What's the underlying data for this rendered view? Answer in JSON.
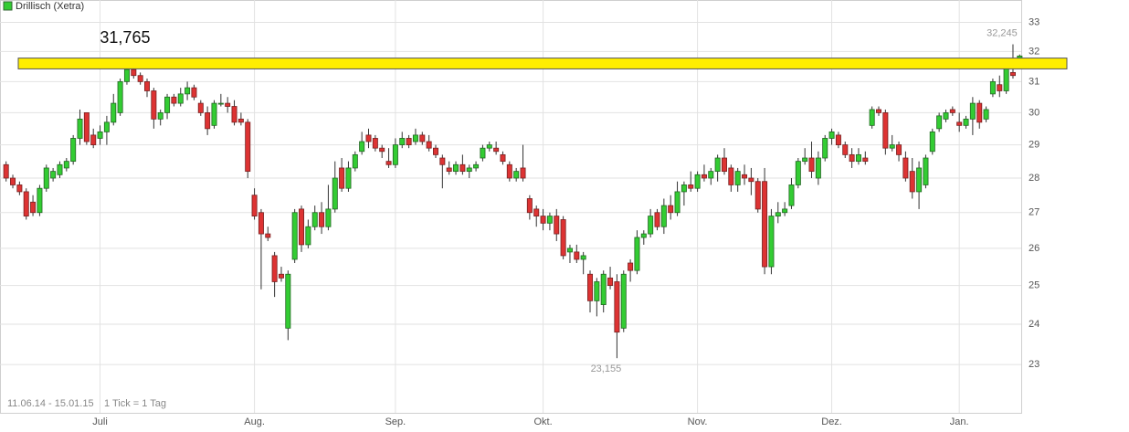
{
  "chart_data": {
    "type": "candlestick",
    "title": "Drillisch (Xetra)",
    "period": "11.06.14 - 15.01.15",
    "tick_note": "1 Tick = 1 Tag",
    "legend_color": "#33cc33",
    "up_color": "#33cc33",
    "down_color": "#dd3333",
    "log_scale": true,
    "grid": true,
    "ylim": [
      21.9,
      33.4
    ],
    "yticks": [
      23,
      24,
      25,
      26,
      27,
      28,
      29,
      30,
      31,
      32,
      33
    ],
    "highlight_band": {
      "from": 31.42,
      "to": 31.78,
      "color": "#ffee00"
    },
    "annotations": [
      {
        "label": "31,765",
        "value": 31.765
      },
      {
        "label": "32,245",
        "value": 32.245
      },
      {
        "label": "23,155",
        "value": 23.155
      }
    ],
    "categories": [
      null,
      null,
      null,
      null,
      null,
      null,
      null,
      null,
      null,
      null,
      null,
      null,
      null,
      null,
      "Juli",
      null,
      null,
      null,
      null,
      null,
      null,
      null,
      null,
      null,
      null,
      null,
      null,
      null,
      null,
      null,
      null,
      null,
      null,
      null,
      null,
      null,
      null,
      "Aug.",
      null,
      null,
      null,
      null,
      null,
      null,
      null,
      null,
      null,
      null,
      null,
      null,
      null,
      null,
      null,
      null,
      null,
      null,
      null,
      null,
      "Sep.",
      null,
      null,
      null,
      null,
      null,
      null,
      null,
      null,
      null,
      null,
      null,
      null,
      null,
      null,
      null,
      null,
      null,
      null,
      null,
      null,
      null,
      "Okt.",
      null,
      null,
      null,
      null,
      null,
      null,
      null,
      null,
      null,
      null,
      null,
      null,
      null,
      null,
      null,
      null,
      null,
      null,
      null,
      null,
      null,
      null,
      "Nov.",
      null,
      null,
      null,
      null,
      null,
      null,
      null,
      null,
      null,
      null,
      null,
      null,
      null,
      null,
      null,
      null,
      null,
      null,
      null,
      "Dez.",
      null,
      null,
      null,
      null,
      null,
      null,
      null,
      null,
      null,
      null,
      null,
      null,
      null,
      null,
      null,
      null,
      null,
      null,
      "Jan.",
      null,
      null,
      null,
      null,
      null,
      null,
      null,
      null,
      null
    ],
    "open": [
      28.4,
      28.0,
      27.8,
      27.6,
      27.3,
      27.0,
      27.7,
      28.0,
      28.1,
      28.3,
      28.5,
      29.2,
      30.0,
      29.3,
      29.2,
      29.4,
      29.7,
      30.0,
      31.0,
      31.4,
      31.2,
      31.0,
      30.7,
      29.8,
      30.0,
      30.5,
      30.3,
      30.6,
      30.8,
      30.3,
      30.0,
      29.6,
      30.3,
      30.3,
      30.2,
      29.8,
      29.7,
      27.5,
      27.0,
      26.4,
      25.8,
      25.3,
      23.9,
      25.7,
      27.1,
      26.1,
      26.6,
      27.0,
      26.6,
      27.1,
      28.3,
      27.7,
      28.3,
      28.8,
      29.3,
      29.2,
      28.9,
      28.5,
      28.4,
      29.0,
      29.2,
      29.1,
      29.3,
      29.1,
      28.9,
      28.6,
      28.3,
      28.2,
      28.4,
      28.2,
      28.3,
      28.6,
      28.9,
      28.9,
      28.7,
      28.4,
      28.0,
      28.3,
      27.4,
      27.1,
      26.9,
      26.7,
      26.9,
      26.8,
      25.9,
      25.9,
      25.7,
      25.3,
      24.6,
      24.5,
      25.2,
      25.1,
      23.9,
      25.6,
      25.4,
      26.3,
      26.4,
      27.0,
      26.6,
      27.2,
      27.0,
      27.6,
      27.8,
      27.7,
      28.1,
      28.0,
      28.2,
      28.6,
      28.3,
      27.8,
      28.1,
      28.0,
      27.9,
      27.9,
      25.5,
      26.9,
      27.0,
      27.2,
      27.8,
      28.5,
      28.6,
      28.0,
      28.6,
      29.2,
      29.3,
      29.0,
      28.7,
      28.5,
      28.6,
      29.6,
      30.1,
      30.0,
      28.9,
      29.0,
      28.6,
      28.2,
      27.6,
      27.8,
      28.8,
      29.5,
      29.8,
      30.1,
      29.7,
      29.6,
      29.8,
      30.3,
      29.8,
      30.6,
      30.9,
      30.7,
      31.3,
      31.7
    ],
    "high": [
      28.5,
      28.1,
      27.9,
      27.7,
      27.5,
      27.8,
      28.4,
      28.3,
      28.5,
      28.6,
      29.3,
      30.1,
      30.0,
      29.5,
      29.6,
      29.9,
      30.6,
      31.1,
      31.765,
      31.6,
      31.3,
      31.1,
      30.8,
      30.1,
      30.6,
      30.6,
      30.8,
      31.0,
      30.9,
      30.4,
      30.2,
      30.4,
      30.6,
      30.5,
      30.4,
      30.0,
      29.8,
      27.7,
      27.1,
      26.6,
      25.9,
      25.5,
      25.4,
      27.1,
      27.2,
      26.8,
      27.2,
      27.3,
      27.8,
      28.5,
      28.6,
      28.5,
      28.8,
      29.4,
      29.5,
      29.3,
      29.0,
      28.9,
      29.2,
      29.4,
      29.3,
      29.5,
      29.4,
      29.3,
      29.0,
      28.7,
      28.5,
      28.5,
      28.7,
      28.4,
      28.5,
      29.0,
      29.1,
      29.1,
      28.8,
      28.5,
      28.3,
      29.0,
      27.5,
      27.2,
      27.1,
      27.0,
      27.1,
      26.9,
      26.1,
      26.1,
      25.9,
      25.4,
      25.2,
      25.4,
      25.5,
      25.3,
      25.4,
      25.7,
      26.5,
      26.5,
      27.1,
      27.1,
      27.4,
      27.5,
      27.9,
      27.9,
      28.2,
      28.2,
      28.4,
      28.3,
      28.7,
      28.9,
      28.4,
      28.3,
      28.4,
      28.3,
      28.0,
      28.3,
      27.1,
      27.3,
      27.3,
      28.0,
      28.6,
      28.9,
      29.1,
      28.8,
      29.3,
      29.5,
      29.4,
      29.1,
      28.9,
      28.9,
      28.8,
      30.2,
      30.2,
      30.1,
      29.3,
      29.1,
      28.8,
      28.6,
      28.5,
      28.7,
      29.5,
      30.0,
      30.1,
      30.2,
      30.0,
      29.9,
      30.5,
      30.4,
      30.2,
      31.1,
      31.2,
      31.7,
      32.245,
      31.9
    ],
    "low": [
      27.9,
      27.7,
      27.5,
      26.8,
      26.9,
      26.9,
      27.6,
      27.9,
      28.0,
      28.2,
      28.4,
      29.0,
      29.0,
      28.9,
      29.0,
      29.0,
      29.6,
      29.9,
      30.9,
      31.1,
      30.9,
      30.5,
      29.5,
      29.6,
      29.8,
      30.2,
      30.2,
      30.4,
      30.4,
      29.9,
      29.3,
      29.5,
      30.2,
      30.0,
      29.6,
      29.6,
      28.0,
      26.8,
      24.9,
      26.2,
      24.7,
      25.1,
      23.6,
      25.6,
      25.9,
      26.0,
      26.5,
      26.4,
      26.5,
      27.0,
      27.6,
      27.6,
      28.2,
      28.7,
      28.9,
      28.8,
      28.6,
      28.3,
      28.3,
      28.9,
      28.9,
      29.0,
      29.0,
      28.8,
      28.6,
      27.7,
      28.1,
      28.1,
      28.1,
      28.0,
      28.2,
      28.5,
      28.8,
      28.7,
      28.4,
      27.9,
      27.9,
      27.9,
      26.8,
      26.6,
      26.5,
      26.5,
      26.2,
      25.7,
      25.6,
      25.6,
      25.3,
      24.3,
      24.2,
      24.3,
      24.9,
      23.155,
      23.8,
      25.1,
      25.3,
      26.1,
      26.3,
      26.5,
      26.4,
      26.8,
      26.9,
      27.2,
      27.6,
      27.6,
      27.9,
      27.8,
      27.9,
      28.1,
      27.6,
      27.6,
      27.8,
      27.5,
      27.0,
      25.3,
      25.3,
      26.7,
      26.9,
      27.1,
      27.7,
      28.4,
      28.0,
      27.8,
      28.5,
      29.0,
      28.9,
      28.6,
      28.3,
      28.4,
      28.4,
      29.5,
      29.9,
      28.7,
      28.8,
      28.5,
      27.9,
      27.4,
      27.1,
      27.7,
      28.7,
      29.4,
      29.7,
      29.9,
      29.4,
      29.5,
      29.3,
      29.5,
      29.7,
      30.5,
      30.5,
      30.6,
      31.1,
      31.6
    ],
    "close": [
      28.0,
      27.8,
      27.6,
      26.9,
      27.0,
      27.7,
      28.3,
      28.2,
      28.4,
      28.5,
      29.2,
      29.8,
      29.1,
      29.0,
      29.4,
      29.7,
      30.3,
      31.0,
      31.4,
      31.2,
      31.0,
      30.7,
      29.8,
      30.0,
      30.5,
      30.3,
      30.6,
      30.8,
      30.5,
      30.0,
      29.5,
      30.3,
      30.3,
      30.2,
      29.7,
      29.7,
      28.2,
      26.9,
      26.4,
      26.3,
      25.1,
      25.2,
      25.3,
      27.0,
      26.1,
      26.6,
      27.0,
      26.6,
      27.1,
      28.0,
      27.7,
      28.3,
      28.7,
      29.1,
      29.1,
      28.9,
      28.8,
      28.4,
      29.0,
      29.2,
      29.0,
      29.3,
      29.1,
      28.9,
      28.7,
      28.4,
      28.2,
      28.4,
      28.2,
      28.3,
      28.4,
      28.9,
      29.0,
      28.8,
      28.5,
      28.0,
      28.2,
      28.0,
      27.0,
      26.9,
      26.7,
      26.9,
      26.4,
      25.8,
      26.0,
      25.7,
      25.8,
      24.6,
      25.1,
      25.3,
      25.0,
      23.8,
      25.3,
      25.4,
      26.3,
      26.4,
      26.9,
      26.6,
      27.2,
      27.0,
      27.6,
      27.8,
      27.7,
      28.1,
      28.0,
      28.2,
      28.6,
      28.2,
      27.8,
      28.2,
      28.0,
      27.9,
      27.1,
      25.5,
      26.9,
      27.0,
      27.1,
      27.8,
      28.5,
      28.6,
      28.2,
      28.6,
      29.2,
      29.4,
      29.0,
      28.7,
      28.5,
      28.7,
      28.5,
      30.1,
      30.0,
      28.9,
      29.0,
      28.7,
      28.0,
      27.6,
      28.3,
      28.6,
      29.4,
      29.9,
      30.0,
      30.0,
      29.6,
      29.8,
      30.3,
      29.7,
      30.1,
      31.0,
      30.7,
      31.6,
      31.2,
      31.85
    ]
  }
}
